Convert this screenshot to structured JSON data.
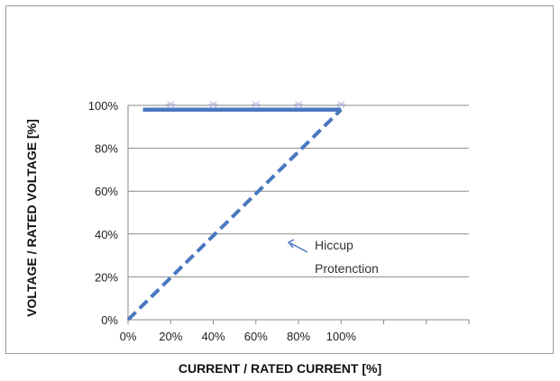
{
  "chart_data": {
    "type": "line",
    "xlabel": "CURRENT / RATED CURRENT [%]",
    "ylabel": "VOLTAGE / RATED VOLTAGE [%]",
    "x_ticks": [
      "0%",
      "20%",
      "40%",
      "60%",
      "80%",
      "100%"
    ],
    "y_ticks": [
      "0%",
      "20%",
      "40%",
      "60%",
      "80%",
      "100%"
    ],
    "xlim": [
      0,
      160
    ],
    "ylim": [
      0,
      100
    ],
    "grid": "horizontal",
    "series": [
      {
        "style": "solid",
        "color": "#4a78c0",
        "x": [
          7,
          100
        ],
        "y": [
          98,
          98
        ]
      },
      {
        "style": "dashed",
        "color": "#4a78c0",
        "x": [
          0,
          100
        ],
        "y": [
          0,
          98
        ]
      }
    ],
    "markers": {
      "x": [
        20,
        40,
        60,
        80,
        100
      ],
      "y": 100,
      "color": "#b8b8e0"
    },
    "annotation": {
      "lines": [
        "Hiccup",
        "Protenction"
      ],
      "arrow_color": "#4a78c0"
    }
  }
}
